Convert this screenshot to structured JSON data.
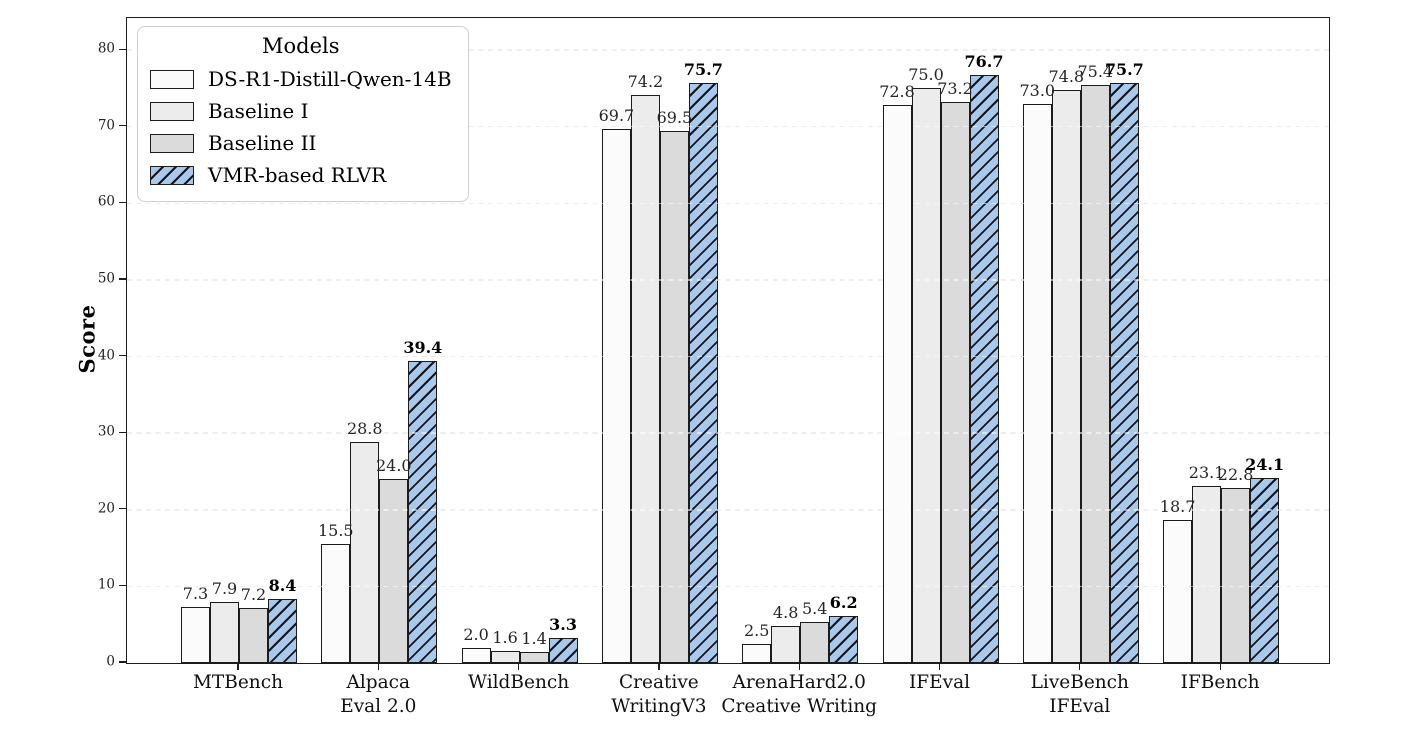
{
  "figure": {
    "background": "#ffffff"
  },
  "chart_data": {
    "type": "bar",
    "title": "",
    "ylabel": "Score",
    "xlabel": "",
    "legend": {
      "title": "Models",
      "position": "upper-left"
    },
    "categories": [
      "MTBench",
      "Alpaca\nEval 2.0",
      "WildBench",
      "Creative\nWritingV3",
      "ArenaHard2.0\nCreative Writing",
      "IFEval",
      "LiveBench\nIFEval",
      "IFBench"
    ],
    "series": [
      {
        "name": "DS-R1-Distill-Qwen-14B",
        "color": "#fbfbfb",
        "hatch": false,
        "bold_labels": false,
        "values": [
          7.3,
          15.5,
          2.0,
          69.7,
          2.5,
          72.8,
          73.0,
          18.7
        ]
      },
      {
        "name": "Baseline I",
        "color": "#ececec",
        "hatch": false,
        "bold_labels": false,
        "values": [
          7.9,
          28.8,
          1.6,
          74.2,
          4.8,
          75.0,
          74.8,
          23.1
        ]
      },
      {
        "name": "Baseline II",
        "color": "#dbdbdb",
        "hatch": false,
        "bold_labels": false,
        "values": [
          7.2,
          24.0,
          1.4,
          69.5,
          5.4,
          73.2,
          75.4,
          22.8
        ]
      },
      {
        "name": "VMR-based RLVR",
        "color": "#a8c9eb",
        "hatch": true,
        "bold_labels": true,
        "values": [
          8.4,
          39.4,
          3.3,
          75.7,
          6.2,
          76.7,
          75.7,
          24.1
        ]
      }
    ],
    "yticks": [
      0,
      10,
      20,
      30,
      40,
      50,
      60,
      70,
      80
    ],
    "ylim": [
      0,
      84.2
    ],
    "grid": {
      "axis": "y",
      "style": "dashed",
      "color": "#d9d9d9"
    },
    "value_labels": {
      "decimals": 1,
      "bold_series": "VMR-based RLVR"
    },
    "style": {
      "edge_color": "#1c1c1c",
      "hatch_pattern": "//"
    }
  }
}
